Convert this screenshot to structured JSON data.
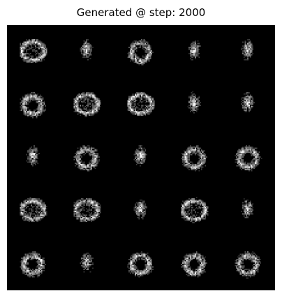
{
  "figure": {
    "title": "Generated @ step: 2000",
    "background_color": "#000000",
    "pixel_color": "#ffffff"
  },
  "grid": {
    "rows": 5,
    "cols": 5,
    "samples": [
      "glyph-a",
      "glyph-b",
      "glyph-c",
      "glyph-b",
      "glyph-b",
      "glyph-c",
      "glyph-a",
      "glyph-a",
      "glyph-b",
      "glyph-b",
      "glyph-b",
      "glyph-c",
      "glyph-b",
      "glyph-c",
      "glyph-c",
      "glyph-a",
      "glyph-a",
      "glyph-b",
      "glyph-a",
      "glyph-b",
      "glyph-c",
      "glyph-b",
      "glyph-c",
      "glyph-c",
      "glyph-c"
    ]
  }
}
